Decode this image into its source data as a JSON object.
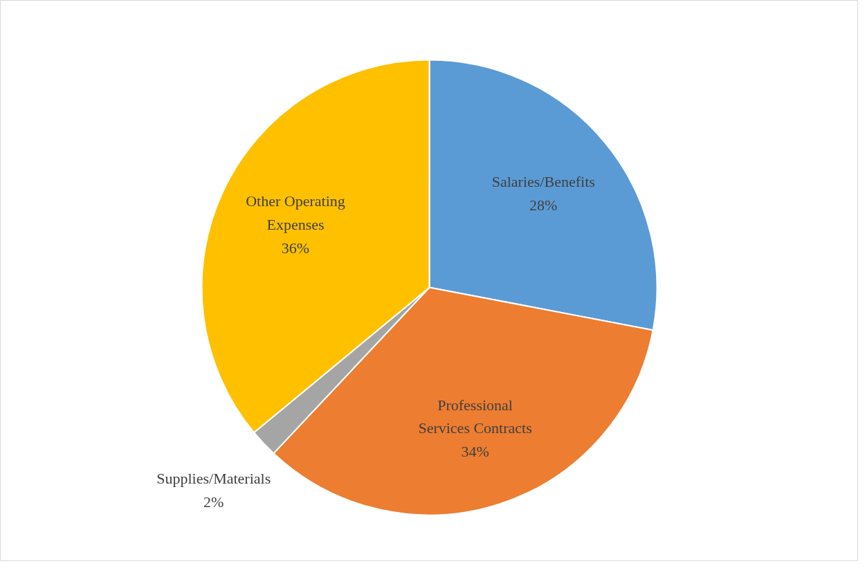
{
  "chart_data": {
    "type": "pie",
    "categories": [
      "Salaries/Benefits",
      "Professional Services Contracts",
      "Supplies/Materials",
      "Other Operating Expenses"
    ],
    "values": [
      28,
      34,
      2,
      36
    ],
    "value_labels": [
      "28%",
      "34%",
      "2%",
      "36%"
    ],
    "colors": [
      "#5b9bd5",
      "#ed7d31",
      "#a5a5a5",
      "#ffc000"
    ],
    "legend": false
  }
}
